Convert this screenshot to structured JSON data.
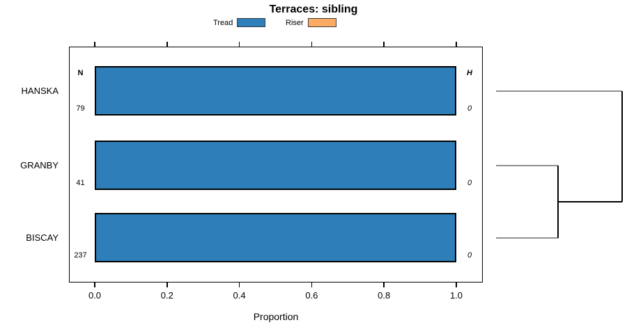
{
  "title": "Terraces: sibling",
  "legend": {
    "items": [
      {
        "label": "Tread",
        "color": "#2e7fb9"
      },
      {
        "label": "Riser",
        "color": "#fcab64"
      }
    ]
  },
  "chart_data": {
    "type": "bar",
    "orientation": "horizontal",
    "title": "Terraces: sibling",
    "xlabel": "Proportion",
    "xlim": [
      0,
      1
    ],
    "x_ticks": [
      0.0,
      0.2,
      0.4,
      0.6,
      0.8,
      1.0
    ],
    "x_tick_labels": [
      "0.0",
      "0.2",
      "0.4",
      "0.6",
      "0.8",
      "1.0"
    ],
    "categories": [
      "HANSKA",
      "GRANBY",
      "BISCAY"
    ],
    "series": [
      {
        "name": "Tread",
        "color": "#2e7fb9",
        "values": [
          1.0,
          1.0,
          1.0
        ]
      },
      {
        "name": "Riser",
        "color": "#fcab64",
        "values": [
          0.0,
          0.0,
          0.0
        ]
      }
    ],
    "row_annotations": {
      "n_header": "N",
      "h_header": "H",
      "n_values": [
        "79",
        "41",
        "237"
      ],
      "h_values": [
        "0",
        "0",
        "0"
      ]
    },
    "dendrogram": {
      "leaves": [
        "HANSKA",
        "GRANBY",
        "BISCAY"
      ],
      "merges": [
        {
          "children": [
            "GRANBY",
            "BISCAY"
          ],
          "rel_height": 0.49
        },
        {
          "children": [
            "HANSKA",
            "merge-0"
          ],
          "rel_height": 1.0
        }
      ],
      "leaf_line_color": "#8f8f8f",
      "cluster_line_color": "#000000"
    },
    "legend_position": "top"
  }
}
